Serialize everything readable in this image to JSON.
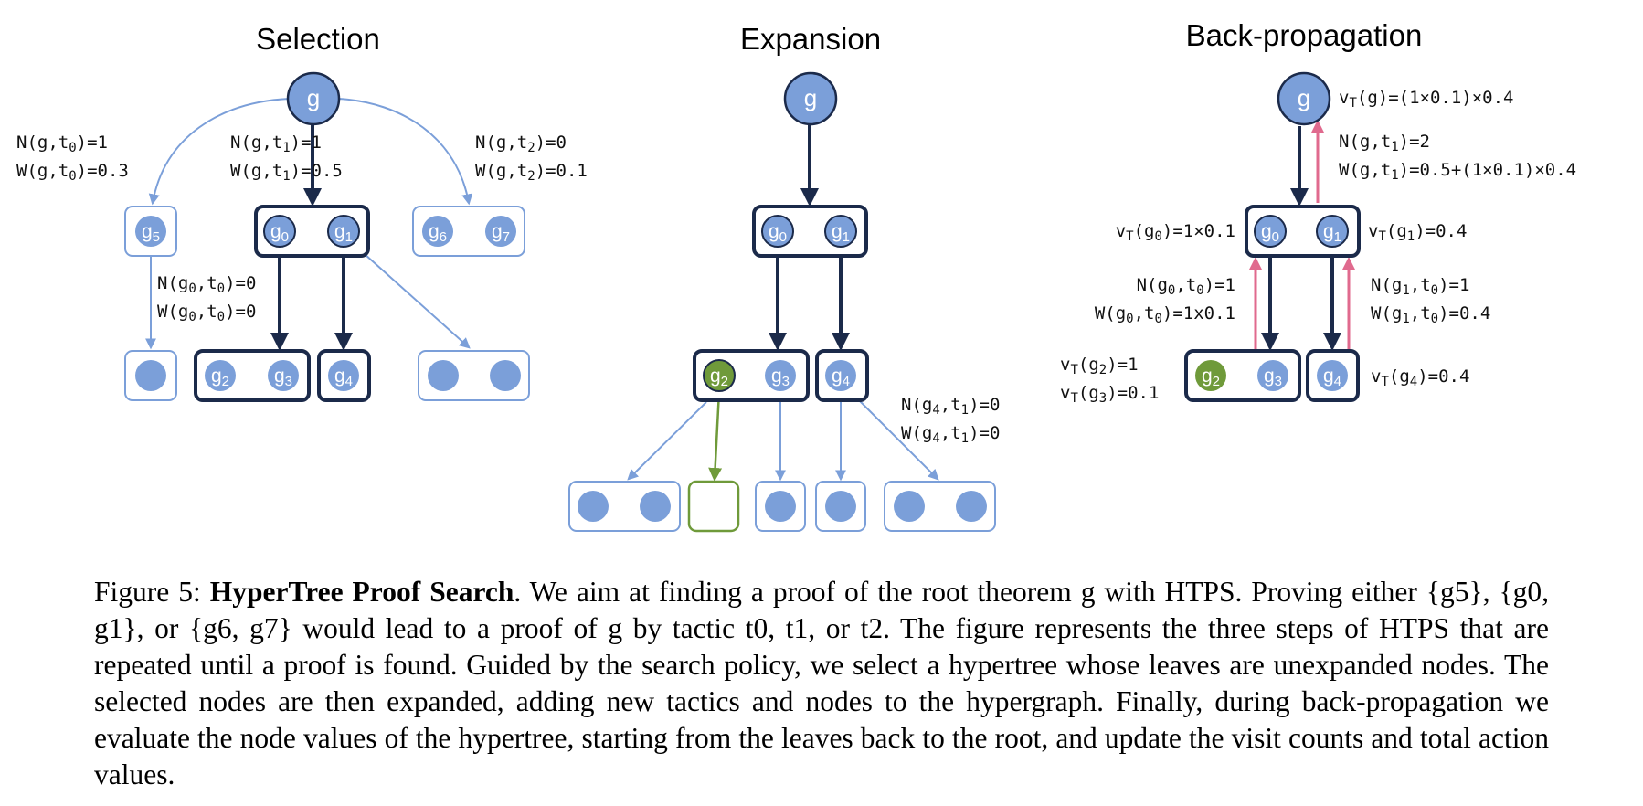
{
  "panels": {
    "selection": {
      "title": "Selection",
      "root": "g",
      "ann_t0": [
        "N(g,t0)=1",
        "W(g,t0)=0.3"
      ],
      "ann_t1": [
        "N(g,t1)=1",
        "W(g,t1)=0.5"
      ],
      "ann_t2": [
        "N(g,t2)=0",
        "W(g,t2)=0.1"
      ],
      "ann_g0": [
        "N(g0,t0)=0",
        "W(g0,t0)=0"
      ],
      "nodes": [
        "g5",
        "g0",
        "g1",
        "g6",
        "g7",
        "g2",
        "g3",
        "g4"
      ]
    },
    "expansion": {
      "title": "Expansion",
      "root": "g",
      "ann_g4": [
        "N(g4,t1)=0",
        "W(g4,t1)=0"
      ],
      "nodes": [
        "g0",
        "g1",
        "g2",
        "g3",
        "g4"
      ]
    },
    "backprop": {
      "title": "Back-propagation",
      "root": "g",
      "ann_root": "vT(g)=(1×0.1)×0.4",
      "ann_t1": [
        "N(g,t1)=2",
        "W(g,t1)=0.5+(1×0.1)×0.4"
      ],
      "ann_vg0": "vT(g0)=1×0.1",
      "ann_vg1": "vT(g1)=0.4",
      "ann_g0t0": [
        "N(g0,t0)=1",
        "W(g0,t0)=1x0.1"
      ],
      "ann_g1t0": [
        "N(g1,t0)=1",
        "W(g1,t0)=0.4"
      ],
      "ann_vg23": [
        "vT(g2)=1",
        "vT(g3)=0.1"
      ],
      "ann_vg4": "vT(g4)=0.4",
      "nodes": [
        "g0",
        "g1",
        "g2",
        "g3",
        "g4"
      ]
    }
  },
  "colors": {
    "light_blue": "#7B9FD9",
    "dark_navy": "#1B2A4A",
    "green": "#6F9A3A",
    "pink": "#E06A8E"
  },
  "caption": {
    "label": "Figure 5:",
    "bold_title": "HyperTree Proof Search",
    "text": ". We aim at finding a proof of the root theorem g with HTPS. Proving either {g5}, {g0, g1}, or {g6, g7} would lead to a proof of g by tactic t0, t1, or t2. The figure represents the three steps of HTPS that are repeated until a proof is found. Guided by the search policy, we select a hypertree whose leaves are unexpanded nodes. The selected nodes are then expanded, adding new tactics and nodes to the hypergraph. Finally, during back-propagation we evaluate the node values of the hypertree, starting from the leaves back to the root, and update the visit counts and total action values."
  }
}
